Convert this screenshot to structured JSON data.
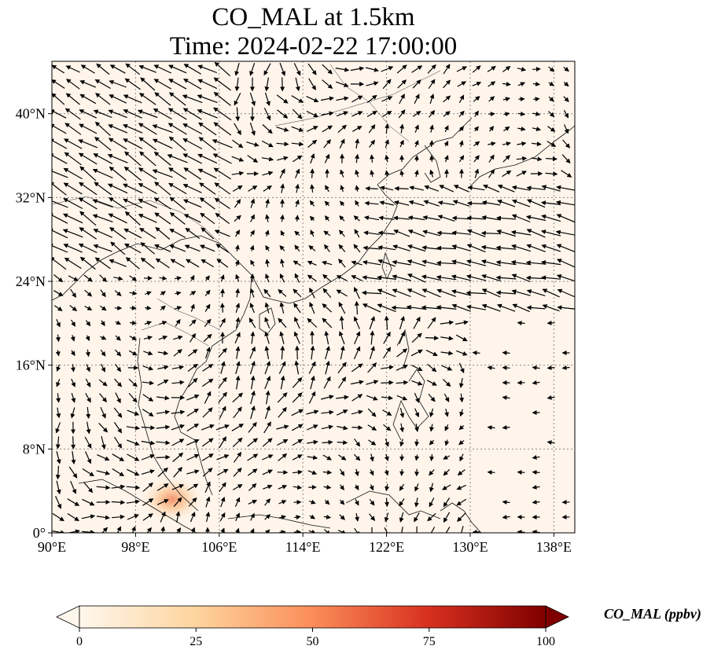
{
  "title": {
    "line1": "CO_MAL at 1.5km",
    "line2": "Time: 2024-02-22 17:00:00"
  },
  "map": {
    "lon_range": [
      90,
      140
    ],
    "lat_range": [
      0,
      45
    ],
    "lon_ticks": [
      "90°E",
      "98°E",
      "106°E",
      "114°E",
      "122°E",
      "130°E",
      "138°E"
    ],
    "lat_ticks": [
      "0°",
      "8°N",
      "16°N",
      "24°N",
      "32°N",
      "40°N"
    ],
    "gridlines": true,
    "background_color": "#fff5eb",
    "hotspot": {
      "lon": 101.5,
      "lat": 3.2,
      "value_ppbv": 30
    }
  },
  "colorbar": {
    "label": "CO_MAL (ppbv)",
    "range": [
      0,
      100
    ],
    "ticks": [
      "0",
      "25",
      "50",
      "75",
      "100"
    ],
    "colormap": "OrRd",
    "colors": [
      "#fff7ec",
      "#fdd49e",
      "#fc8d59",
      "#d7301f",
      "#7f0000"
    ],
    "extend": "both"
  }
}
